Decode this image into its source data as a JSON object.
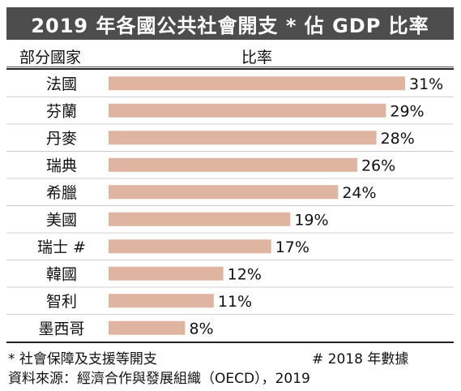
{
  "title": "2019 年各國公共社會開支 * 佔 GDP 比率",
  "header": {
    "country_label": "部分國家",
    "ratio_label": "比率"
  },
  "colors": {
    "bar": "#dfb5a2",
    "title_bg": "#4d4d4d",
    "divider": "#cfcfcf"
  },
  "chart_data": {
    "type": "bar",
    "orientation": "horizontal",
    "title": "2019 年各國公共社會開支 * 佔 GDP 比率",
    "xlabel": "比率",
    "ylabel": "部分國家",
    "categories": [
      "法國",
      "芬蘭",
      "丹麥",
      "瑞典",
      "希臘",
      "美國",
      "瑞士 #",
      "韓國",
      "智利",
      "墨西哥"
    ],
    "values": [
      31,
      29,
      28,
      26,
      24,
      19,
      17,
      12,
      11,
      8
    ],
    "value_labels": [
      "31%",
      "29%",
      "28%",
      "26%",
      "24%",
      "19%",
      "17%",
      "12%",
      "11%",
      "8%"
    ],
    "unit": "%",
    "xlim": [
      0,
      31
    ],
    "grid": false,
    "legend": "none"
  },
  "footnotes": {
    "note_social": "* 社會保障及支援等開支",
    "note_swiss": "# 2018 年數據",
    "source": "資料來源：經濟合作與發展組織（OECD），2019"
  }
}
